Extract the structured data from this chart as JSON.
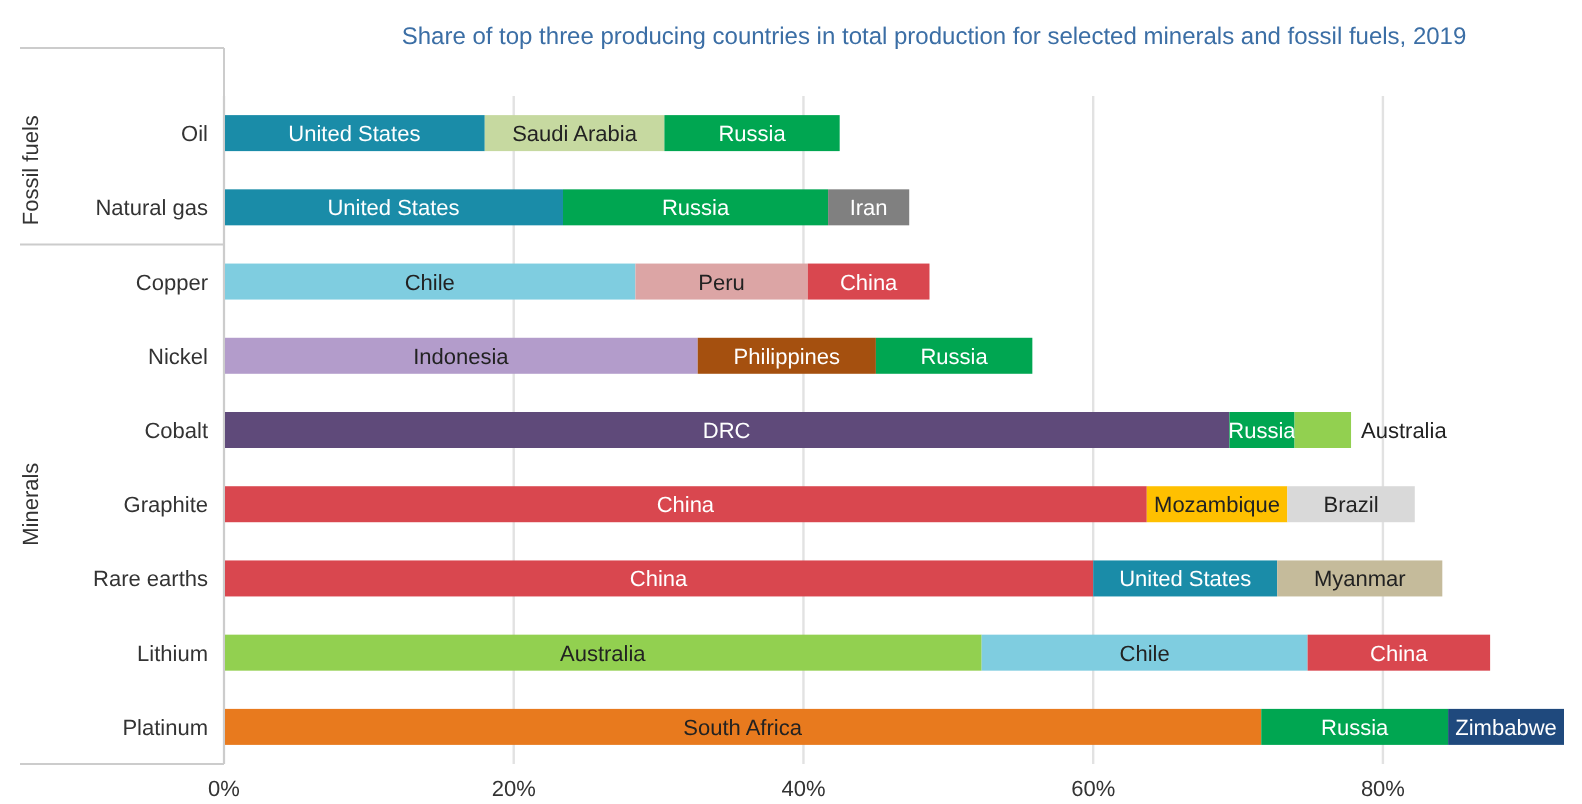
{
  "chart_data": {
    "type": "bar",
    "orientation": "horizontal",
    "stacked": true,
    "title": "Share of top three producing countries in total production for selected minerals and fossil fuels, 2019",
    "categories": [
      "Oil",
      "Natural gas",
      "Copper",
      "Nickel",
      "Cobalt",
      "Graphite",
      "Rare earths",
      "Lithium",
      "Platinum"
    ],
    "series": [
      {
        "colors": [
          "#1a8ca8",
          "#1a8ca8",
          "#7fcde0",
          "#b39ccb",
          "#5f4a7a",
          "#d9474f",
          "#d9474f",
          "#92d050",
          "#e87a1e"
        ],
        "values": [
          18.0,
          23.4,
          28.4,
          32.7,
          69.4,
          63.7,
          60.0,
          52.3,
          71.6
        ],
        "value_labels": [
          "United States",
          "United States",
          "Chile",
          "Indonesia",
          "DRC",
          "China",
          "China",
          "Australia",
          "South Africa"
        ]
      },
      {
        "colors": [
          "#c6d9a0",
          "#00a651",
          "#dca5a5",
          "#a5500f",
          "#00a651",
          "#ffc000",
          "#1a8ca8",
          "#7fcde0",
          "#00a651"
        ],
        "values": [
          12.4,
          18.3,
          11.9,
          12.3,
          4.5,
          9.7,
          12.7,
          22.5,
          12.9
        ],
        "value_labels": [
          "Saudi Arabia",
          "Russia",
          "Peru",
          "Philippines",
          "Russia",
          "Mozambique",
          "United States",
          "Chile",
          "Russia"
        ]
      },
      {
        "colors": [
          "#00a651",
          "#808080",
          "#d9474f",
          "#00a651",
          "#92d050",
          "#d9d9d9",
          "#c5bb9b",
          "#d9474f",
          "#1f497d"
        ],
        "values": [
          12.1,
          5.6,
          8.4,
          10.8,
          3.9,
          8.8,
          11.4,
          12.6,
          8
        ],
        "value_labels": [
          "Russia",
          "Iran",
          "China",
          "Russia",
          "Australia",
          "Brazil",
          "Myanmar",
          "China",
          "Zimbabwe"
        ]
      }
    ],
    "xlim": [
      0,
      92.5
    ],
    "xticks": [
      {
        "value": 0,
        "label": "0%"
      },
      {
        "value": 20,
        "label": "20%"
      },
      {
        "value": 40,
        "label": "40%"
      },
      {
        "value": 60,
        "label": "60%"
      },
      {
        "value": 80,
        "label": "80%"
      }
    ],
    "grid": "x",
    "annotations": [
      "Fossil fuels",
      "Minerals"
    ]
  }
}
